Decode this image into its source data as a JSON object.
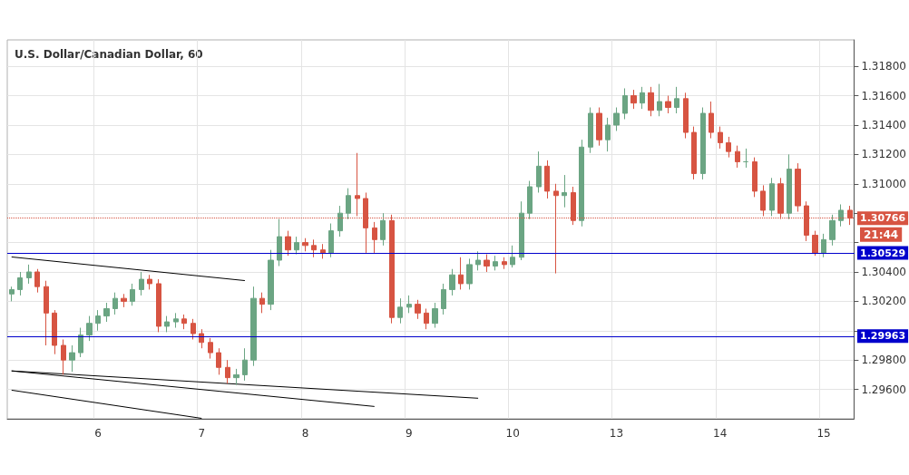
{
  "chart_data": {
    "type": "candlestick",
    "title": "U.S. Dollar/Canadian Dollar, 60",
    "categories": [
      null,
      null,
      null,
      null,
      null,
      null,
      null,
      null,
      null,
      null,
      "6",
      null,
      null,
      null,
      null,
      null,
      null,
      null,
      null,
      null,
      null,
      null,
      "7",
      null,
      null,
      null,
      null,
      null,
      null,
      null,
      null,
      null,
      null,
      null,
      "8",
      null,
      null,
      null,
      null,
      null,
      null,
      null,
      null,
      null,
      null,
      null,
      "9",
      null,
      null,
      null,
      null,
      null,
      null,
      null,
      null,
      null,
      null,
      null,
      "10",
      null,
      null,
      null,
      null,
      null,
      null,
      null,
      null,
      null,
      null,
      null,
      "13",
      null,
      null,
      null,
      null,
      null,
      null,
      null,
      null,
      null,
      null,
      null,
      "14",
      null,
      null,
      null,
      null,
      null,
      null,
      null,
      null,
      null,
      null,
      null,
      "15",
      null,
      null,
      null
    ],
    "ohlc": [
      [
        1.3025,
        1.303,
        1.302,
        1.3028
      ],
      [
        1.3028,
        1.304,
        1.3024,
        1.3036
      ],
      [
        1.3036,
        1.3045,
        1.3032,
        1.304
      ],
      [
        1.304,
        1.3042,
        1.3026,
        1.303
      ],
      [
        1.303,
        1.3034,
        1.299,
        1.3012
      ],
      [
        1.3012,
        1.3014,
        1.2984,
        1.299
      ],
      [
        1.299,
        1.2994,
        1.297,
        1.298
      ],
      [
        1.298,
        1.299,
        1.2972,
        1.2985
      ],
      [
        1.2985,
        1.3002,
        1.2982,
        1.2997
      ],
      [
        1.2997,
        1.301,
        1.2993,
        1.3005
      ],
      [
        1.3005,
        1.3014,
        1.3,
        1.301
      ],
      [
        1.301,
        1.3019,
        1.3006,
        1.3015
      ],
      [
        1.3015,
        1.3026,
        1.3011,
        1.3022
      ],
      [
        1.3022,
        1.3025,
        1.3016,
        1.302
      ],
      [
        1.302,
        1.3032,
        1.3017,
        1.3028
      ],
      [
        1.3028,
        1.304,
        1.3024,
        1.3035
      ],
      [
        1.3035,
        1.3038,
        1.3028,
        1.3032
      ],
      [
        1.3032,
        1.3035,
        1.2999,
        1.3003
      ],
      [
        1.3003,
        1.301,
        1.2999,
        1.3006
      ],
      [
        1.3006,
        1.3012,
        1.3002,
        1.3008
      ],
      [
        1.3008,
        1.3011,
        1.3001,
        1.3005
      ],
      [
        1.3005,
        1.3008,
        1.2994,
        1.2998
      ],
      [
        1.2998,
        1.3001,
        1.2988,
        1.2992
      ],
      [
        1.2992,
        1.2995,
        1.2981,
        1.2985
      ],
      [
        1.2985,
        1.2988,
        1.297,
        1.2975
      ],
      [
        1.2975,
        1.298,
        1.2964,
        1.2968
      ],
      [
        1.2968,
        1.2974,
        1.2963,
        1.297
      ],
      [
        1.297,
        1.2988,
        1.2966,
        1.298
      ],
      [
        1.298,
        1.303,
        1.2976,
        1.3022
      ],
      [
        1.3022,
        1.3026,
        1.3012,
        1.3018
      ],
      [
        1.3018,
        1.3055,
        1.3014,
        1.3048
      ],
      [
        1.3048,
        1.3076,
        1.3044,
        1.3064
      ],
      [
        1.3064,
        1.3068,
        1.3051,
        1.3055
      ],
      [
        1.3055,
        1.3064,
        1.3052,
        1.306
      ],
      [
        1.306,
        1.3063,
        1.3054,
        1.3058
      ],
      [
        1.3058,
        1.3062,
        1.305,
        1.3055
      ],
      [
        1.3055,
        1.3059,
        1.3049,
        1.3053
      ],
      [
        1.3053,
        1.3073,
        1.305,
        1.3068
      ],
      [
        1.3068,
        1.3085,
        1.3064,
        1.308
      ],
      [
        1.308,
        1.3097,
        1.3076,
        1.3092
      ],
      [
        1.3092,
        1.3121,
        1.3078,
        1.309
      ],
      [
        1.309,
        1.3094,
        1.3053,
        1.307
      ],
      [
        1.307,
        1.3074,
        1.3053,
        1.3062
      ],
      [
        1.3062,
        1.308,
        1.3058,
        1.3075
      ],
      [
        1.3075,
        1.3079,
        1.3005,
        1.3009
      ],
      [
        1.3009,
        1.3022,
        1.3005,
        1.3016
      ],
      [
        1.3016,
        1.3024,
        1.3012,
        1.3018
      ],
      [
        1.3018,
        1.3021,
        1.3008,
        1.3012
      ],
      [
        1.3012,
        1.3015,
        1.3001,
        1.3005
      ],
      [
        1.3005,
        1.3019,
        1.3002,
        1.3015
      ],
      [
        1.3015,
        1.3032,
        1.3011,
        1.3028
      ],
      [
        1.3028,
        1.3042,
        1.3024,
        1.3038
      ],
      [
        1.3038,
        1.305,
        1.3028,
        1.3032
      ],
      [
        1.3032,
        1.3049,
        1.3028,
        1.3045
      ],
      [
        1.3045,
        1.3054,
        1.3041,
        1.3048
      ],
      [
        1.3048,
        1.3052,
        1.304,
        1.3044
      ],
      [
        1.3044,
        1.3051,
        1.3041,
        1.3047
      ],
      [
        1.3047,
        1.305,
        1.3042,
        1.3045
      ],
      [
        1.3045,
        1.3058,
        1.3043,
        1.305
      ],
      [
        1.305,
        1.3088,
        1.3048,
        1.308
      ],
      [
        1.308,
        1.3102,
        1.3076,
        1.3098
      ],
      [
        1.3098,
        1.3122,
        1.3094,
        1.3112
      ],
      [
        1.3112,
        1.3116,
        1.309,
        1.3095
      ],
      [
        1.3095,
        1.31,
        1.3039,
        1.3092
      ],
      [
        1.3092,
        1.3106,
        1.3084,
        1.3094
      ],
      [
        1.3094,
        1.3098,
        1.3072,
        1.3075
      ],
      [
        1.3075,
        1.313,
        1.3071,
        1.3125
      ],
      [
        1.3125,
        1.3152,
        1.3121,
        1.3148
      ],
      [
        1.3148,
        1.3152,
        1.3126,
        1.313
      ],
      [
        1.313,
        1.3145,
        1.3122,
        1.314
      ],
      [
        1.314,
        1.3152,
        1.3136,
        1.3148
      ],
      [
        1.3148,
        1.3165,
        1.3144,
        1.316
      ],
      [
        1.316,
        1.3164,
        1.3151,
        1.3155
      ],
      [
        1.3155,
        1.3166,
        1.3151,
        1.3162
      ],
      [
        1.3162,
        1.3166,
        1.3146,
        1.315
      ],
      [
        1.315,
        1.3168,
        1.3146,
        1.3156
      ],
      [
        1.3156,
        1.316,
        1.3148,
        1.3152
      ],
      [
        1.3152,
        1.3166,
        1.3148,
        1.3158
      ],
      [
        1.3158,
        1.3162,
        1.3131,
        1.3135
      ],
      [
        1.3135,
        1.3139,
        1.3103,
        1.3107
      ],
      [
        1.3107,
        1.3152,
        1.3103,
        1.3148
      ],
      [
        1.3148,
        1.3156,
        1.3131,
        1.3135
      ],
      [
        1.3135,
        1.3139,
        1.3124,
        1.3128
      ],
      [
        1.3128,
        1.3132,
        1.3118,
        1.3122
      ],
      [
        1.3122,
        1.3126,
        1.3111,
        1.3115
      ],
      [
        1.3115,
        1.3124,
        1.3111,
        1.3115
      ],
      [
        1.3115,
        1.3118,
        1.3091,
        1.3095
      ],
      [
        1.3095,
        1.3099,
        1.3078,
        1.3082
      ],
      [
        1.3082,
        1.3104,
        1.3078,
        1.31
      ],
      [
        1.31,
        1.3104,
        1.3076,
        1.308
      ],
      [
        1.308,
        1.312,
        1.3076,
        1.311
      ],
      [
        1.311,
        1.3114,
        1.3081,
        1.3085
      ],
      [
        1.3085,
        1.3088,
        1.3061,
        1.3065
      ],
      [
        1.3065,
        1.3068,
        1.3051,
        1.3053
      ],
      [
        1.3053,
        1.3066,
        1.305,
        1.3062
      ],
      [
        1.3062,
        1.3079,
        1.3058,
        1.3075
      ],
      [
        1.3075,
        1.3086,
        1.3071,
        1.3082
      ],
      [
        1.3082,
        1.3085,
        1.3072,
        1.30766
      ]
    ],
    "colors": [
      "#6ba583",
      "#6ba583",
      "#6ba583",
      "#d75442",
      "#d75442",
      "#d75442",
      "#d75442",
      "#6ba583",
      "#6ba583",
      "#6ba583",
      "#6ba583",
      "#6ba583",
      "#6ba583",
      "#d75442",
      "#6ba583",
      "#6ba583",
      "#d75442",
      "#d75442",
      "#6ba583",
      "#6ba583",
      "#d75442",
      "#d75442",
      "#d75442",
      "#d75442",
      "#d75442",
      "#d75442",
      "#6ba583",
      "#6ba583",
      "#6ba583",
      "#d75442",
      "#6ba583",
      "#6ba583",
      "#d75442",
      "#6ba583",
      "#d75442",
      "#d75442",
      "#d75442",
      "#6ba583",
      "#6ba583",
      "#6ba583",
      "#d75442",
      "#d75442",
      "#d75442",
      "#6ba583",
      "#d75442",
      "#6ba583",
      "#6ba583",
      "#d75442",
      "#d75442",
      "#6ba583",
      "#6ba583",
      "#6ba583",
      "#d75442",
      "#6ba583",
      "#6ba583",
      "#d75442",
      "#6ba583",
      "#d75442",
      "#6ba583",
      "#6ba583",
      "#6ba583",
      "#6ba583",
      "#d75442",
      "#d75442",
      "#6ba583",
      "#d75442",
      "#6ba583",
      "#6ba583",
      "#d75442",
      "#6ba583",
      "#6ba583",
      "#6ba583",
      "#d75442",
      "#6ba583",
      "#d75442",
      "#6ba583",
      "#d75442",
      "#6ba583",
      "#d75442",
      "#d75442",
      "#6ba583",
      "#d75442",
      "#d75442",
      "#d75442",
      "#d75442",
      "#6ba583",
      "#d75442",
      "#d75442",
      "#6ba583",
      "#d75442",
      "#6ba583",
      "#d75442",
      "#d75442",
      "#d75442",
      "#6ba583",
      "#6ba583",
      "#6ba583",
      "#d75442"
    ],
    "series": [
      {
        "type": "line",
        "color": "#000000",
        "values": [
          1.30502,
          null,
          null,
          null,
          null,
          null,
          null,
          null,
          null,
          null,
          null,
          null,
          null,
          null,
          null,
          null,
          null,
          null,
          null,
          null,
          null,
          null,
          null,
          null,
          null,
          null,
          null,
          1.30341,
          null,
          null,
          null,
          null,
          null,
          null,
          null,
          null,
          null,
          null,
          null,
          null,
          null,
          null,
          null,
          null,
          null,
          null,
          null,
          null,
          null,
          null,
          null,
          null,
          null,
          null,
          null,
          null,
          null,
          null,
          null,
          null,
          null,
          null,
          null,
          null,
          null,
          null,
          null,
          null,
          null,
          null,
          null,
          null,
          null,
          null,
          null,
          null,
          null,
          null,
          null,
          null,
          null,
          null,
          null,
          null,
          null,
          null,
          null,
          null,
          null,
          null,
          null,
          null,
          null,
          null,
          null,
          null,
          null,
          null
        ]
      },
      {
        "type": "line",
        "color": "#000000",
        "values": [
          1.29726,
          null,
          null,
          null,
          null,
          null,
          null,
          null,
          null,
          null,
          null,
          null,
          null,
          null,
          null,
          null,
          null,
          null,
          null,
          null,
          null,
          null,
          null,
          null,
          null,
          null,
          null,
          null,
          null,
          null,
          null,
          null,
          null,
          null,
          null,
          null,
          null,
          null,
          null,
          null,
          null,
          null,
          1.29484,
          null,
          null,
          null,
          null,
          null,
          null,
          null,
          null,
          null,
          null,
          null,
          null,
          null,
          null,
          null,
          null,
          null,
          null,
          null,
          null,
          null,
          null,
          null,
          null,
          null,
          null,
          null,
          null,
          null,
          null,
          null,
          null,
          null,
          null,
          null,
          null,
          null,
          null,
          null,
          null,
          null,
          null,
          null,
          null,
          null,
          null,
          null,
          null,
          null,
          null,
          null,
          null,
          null,
          null,
          null
        ]
      },
      {
        "type": "line",
        "color": "#000000",
        "values": [
          1.29726,
          null,
          null,
          null,
          null,
          null,
          null,
          null,
          null,
          null,
          null,
          null,
          null,
          null,
          null,
          null,
          null,
          null,
          null,
          null,
          null,
          null,
          null,
          null,
          null,
          null,
          null,
          null,
          null,
          null,
          null,
          null,
          null,
          null,
          null,
          null,
          null,
          null,
          null,
          null,
          null,
          null,
          null,
          null,
          null,
          null,
          null,
          null,
          null,
          null,
          null,
          null,
          null,
          null,
          1.2954,
          null,
          null,
          null,
          null,
          null,
          null,
          null,
          null,
          null,
          null,
          null,
          null,
          null,
          null,
          null,
          null,
          null,
          null,
          null,
          null,
          null,
          null,
          null,
          null,
          null,
          null,
          null,
          null,
          null,
          null,
          null,
          null,
          null,
          null,
          null,
          null,
          null,
          null,
          null,
          null,
          null,
          null,
          null
        ]
      },
      {
        "type": "line",
        "color": "#000000",
        "values": [
          1.29595,
          null,
          null,
          null,
          null,
          null,
          null,
          null,
          null,
          null,
          null,
          null,
          null,
          null,
          null,
          null,
          null,
          null,
          null,
          null,
          null,
          null,
          1.29403,
          null,
          null,
          null,
          null,
          null,
          null,
          null,
          null,
          null,
          null,
          null,
          null,
          null,
          null,
          null,
          null,
          null,
          null,
          null,
          null,
          null,
          null,
          null,
          null,
          null,
          null,
          null,
          null,
          null,
          null,
          null,
          null,
          null,
          null,
          null,
          null,
          null,
          null,
          null,
          null,
          null,
          null,
          null,
          null,
          null,
          null,
          null,
          null,
          null,
          null,
          null,
          null,
          null,
          null,
          null,
          null,
          null,
          null,
          null,
          null,
          null,
          null,
          null,
          null,
          null,
          null,
          null,
          null,
          null,
          null,
          null,
          null,
          null,
          null,
          null
        ]
      }
    ],
    "ylim": [
      1.294,
      1.3198
    ],
    "yticks": [
      {
        "value": 1.296,
        "label": "1.29600"
      },
      {
        "value": 1.298,
        "label": "1.29800"
      },
      {
        "value": 1.3,
        "label": null
      },
      {
        "value": 1.302,
        "label": "1.30200"
      },
      {
        "value": 1.304,
        "label": "1.30400"
      },
      {
        "value": 1.306,
        "label": null
      },
      {
        "value": 1.308,
        "label": null
      },
      {
        "value": 1.31,
        "label": "1.31000"
      },
      {
        "value": 1.312,
        "label": "1.31200"
      },
      {
        "value": 1.314,
        "label": "1.31400"
      },
      {
        "value": 1.316,
        "label": "1.31600"
      },
      {
        "value": 1.318,
        "label": "1.31800"
      }
    ],
    "ref_lines": [
      {
        "axis": "y",
        "value": 1.30766,
        "label": "1.30766",
        "color": "#d75442",
        "line_style": "dotted"
      },
      {
        "axis": "y",
        "value": 1.30529,
        "label": "1.30529",
        "color": "#0000cc",
        "line_style": "solid"
      },
      {
        "axis": "y",
        "value": 1.29963,
        "label": "1.29963",
        "color": "#0000cc",
        "line_style": "solid"
      }
    ],
    "annotations": [
      "21:44"
    ],
    "grid": true
  }
}
